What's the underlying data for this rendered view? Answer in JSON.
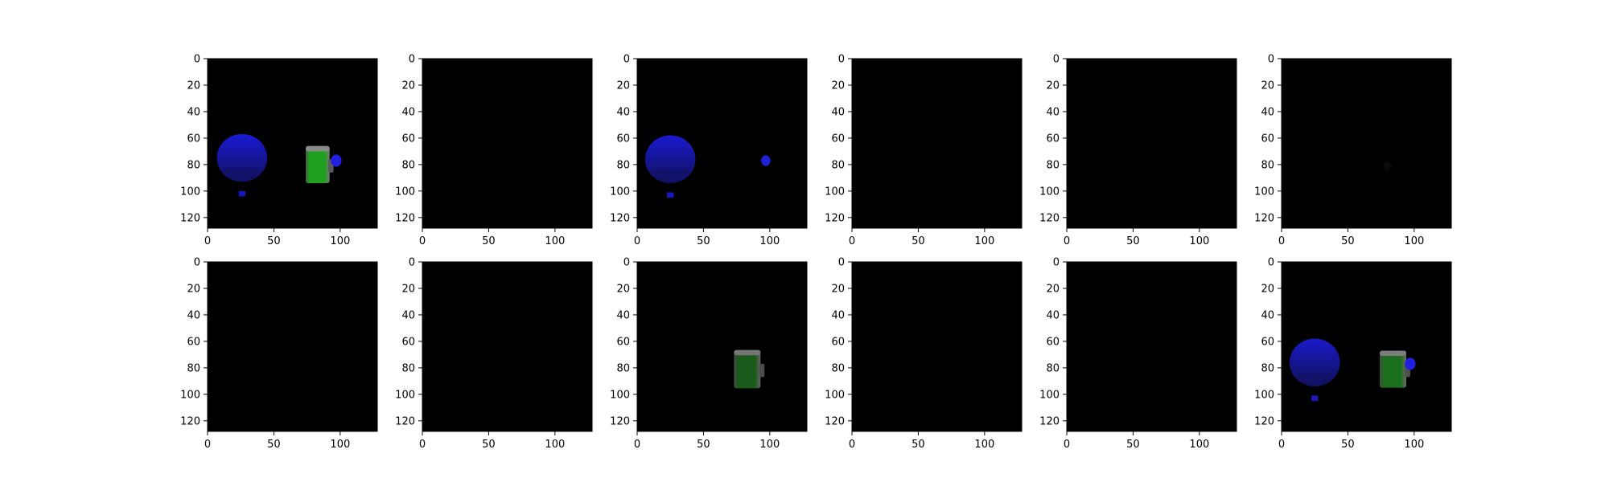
{
  "chart_data": {
    "type": "image-grid",
    "rows": 2,
    "cols": 6,
    "xlim": [
      0,
      128
    ],
    "ylim": [
      128,
      0
    ],
    "x_ticks": [
      0,
      50,
      100
    ],
    "y_ticks": [
      0,
      20,
      40,
      60,
      80,
      100,
      120
    ],
    "background": "#000000",
    "panels": [
      {
        "objects": [
          {
            "kind": "balloon",
            "color": "#1a1ad6",
            "cx": 26,
            "cy": 77,
            "rx": 19,
            "ry": 22,
            "opacity": 1.0
          },
          {
            "kind": "mug",
            "color": "#1fa11f",
            "cx": 83,
            "cy": 80,
            "w": 18,
            "h": 28,
            "opacity": 1.0
          },
          {
            "kind": "blob",
            "color": "#2020e0",
            "cx": 97,
            "cy": 77,
            "r": 4,
            "opacity": 1.0
          }
        ]
      },
      {
        "objects": []
      },
      {
        "objects": [
          {
            "kind": "balloon",
            "color": "#1a1ad0",
            "cx": 25,
            "cy": 78,
            "rx": 19,
            "ry": 22,
            "opacity": 1.0
          },
          {
            "kind": "blob",
            "color": "#2020d8",
            "cx": 97,
            "cy": 77,
            "r": 3.5,
            "opacity": 1.0
          }
        ]
      },
      {
        "objects": []
      },
      {
        "objects": []
      },
      {
        "objects": [
          {
            "kind": "blob",
            "color": "#101010",
            "cx": 80,
            "cy": 81,
            "r": 3,
            "opacity": 0.6
          }
        ]
      },
      {
        "objects": []
      },
      {
        "objects": []
      },
      {
        "objects": [
          {
            "kind": "mug",
            "color": "#1f6a1f",
            "cx": 83,
            "cy": 81,
            "w": 20,
            "h": 29,
            "opacity": 0.85
          }
        ]
      },
      {
        "objects": []
      },
      {
        "objects": []
      },
      {
        "objects": [
          {
            "kind": "balloon",
            "color": "#1a1ac8",
            "cx": 25,
            "cy": 78,
            "rx": 19,
            "ry": 22,
            "opacity": 1.0
          },
          {
            "kind": "mug",
            "color": "#1f7a1f",
            "cx": 84,
            "cy": 81,
            "w": 20,
            "h": 28,
            "opacity": 0.9
          },
          {
            "kind": "blob",
            "color": "#2020e0",
            "cx": 97,
            "cy": 77,
            "r": 4,
            "opacity": 1.0
          }
        ]
      }
    ]
  }
}
